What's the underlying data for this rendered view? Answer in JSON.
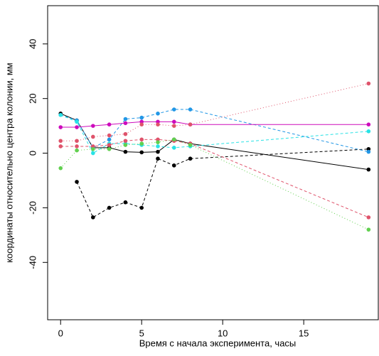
{
  "chart_data": {
    "type": "line",
    "xlabel": "Время с начала эксперимента, часы",
    "ylabel": "координаты относительно центра колонии, мм",
    "x": [
      0,
      1,
      2,
      3,
      4,
      5,
      6,
      7,
      8,
      19
    ],
    "xlim": [
      -0.8,
      19.6
    ],
    "xticks": [
      0,
      5,
      10,
      15
    ],
    "ylim": [
      -61,
      54
    ],
    "yticks": [
      -40,
      -20,
      0,
      20,
      40
    ],
    "series": [
      {
        "color": "#000000",
        "lty": "solid",
        "values": [
          14.5,
          12,
          2,
          2,
          0.5,
          0.3,
          0.5,
          5,
          3.5,
          -6
        ]
      },
      {
        "color": "#000000",
        "lty": "dashed",
        "values": [
          null,
          -10.5,
          -23.5,
          -20,
          -18,
          -20,
          -2,
          -4.5,
          -2,
          1.5
        ]
      },
      {
        "color": "#2297E6",
        "lty": "dashed",
        "values": [
          14,
          12,
          2,
          5,
          12.5,
          13,
          14.5,
          16,
          16,
          0.5
        ]
      },
      {
        "color": "#28E2E5",
        "lty": "dashed",
        "values": [
          14,
          11.5,
          0,
          3.5,
          3.5,
          3,
          2.5,
          2,
          2.5,
          8
        ]
      },
      {
        "color": "#CD0BBC",
        "lty": "solid",
        "values": [
          9.5,
          9.5,
          10,
          10.5,
          11,
          11.5,
          11.5,
          11.5,
          10.5,
          10.5
        ]
      },
      {
        "color": "#DF536B",
        "lty": "dotted",
        "values": [
          4.5,
          4.5,
          6,
          6.5,
          7,
          10.5,
          10.5,
          10,
          10.5,
          25.5
        ]
      },
      {
        "color": "#DF536B",
        "lty": "dashed",
        "values": [
          2.5,
          2.5,
          2.5,
          3,
          4.5,
          5,
          5,
          4.5,
          3.5,
          -23.5
        ]
      },
      {
        "color": "#61D04F",
        "lty": "dotted",
        "values": [
          -5.5,
          1,
          1.5,
          1.5,
          3,
          3.5,
          4,
          5,
          3,
          -28
        ]
      }
    ]
  }
}
